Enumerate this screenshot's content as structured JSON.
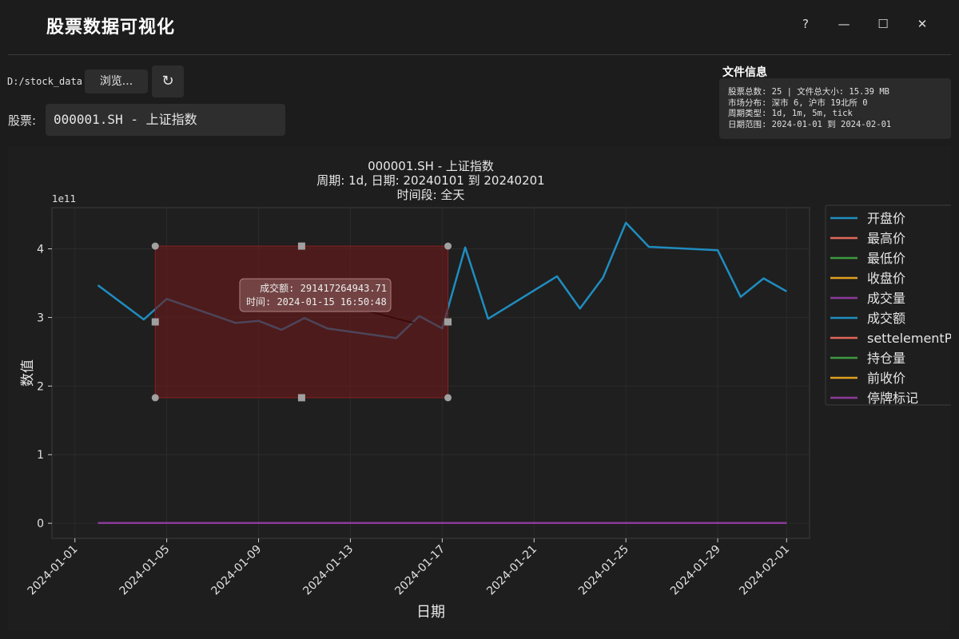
{
  "app": {
    "title": "股票数据可视化",
    "window_buttons": {
      "help": "?",
      "minimize": "—",
      "maximize": "☐",
      "close": "✕"
    }
  },
  "toolbar": {
    "path": "D:/stock_data",
    "browse_label": "浏览...",
    "refresh_label": "↻",
    "stock_label": "股票:",
    "stock_value": "000001.SH - 上证指数"
  },
  "file_info": {
    "title": "文件信息",
    "lines": [
      "股票总数: 25  |  文件总大小: 15.39 MB",
      "市场分布: 深市 6, 沪市 19北所 0",
      "周期类型: 1d, 1m, 5m, tick",
      "日期范围: 2024-01-01 到 2024-02-01"
    ]
  },
  "colors": {
    "background": "#1c1c1c",
    "panel": "#1e1e1e",
    "series_blue": "#1f8dc0",
    "series_red": "#e0675a",
    "series_green": "#3d9a3d",
    "series_orange": "#e0a020",
    "series_purple": "#8b3a9a",
    "selection_fill": "#6a1a1a"
  },
  "chart_data": {
    "type": "line",
    "title_lines": [
      "000001.SH - 上证指数",
      "周期: 1d, 日期: 20240101 到 20240201",
      "时间段: 全天"
    ],
    "xlabel": "日期",
    "ylabel": "数值",
    "y_multiplier": "1e11",
    "y_ticks": [
      "0",
      "1",
      "2",
      "3",
      "4"
    ],
    "x_ticks": [
      "2024-01-01",
      "2024-01-05",
      "2024-01-09",
      "2024-01-13",
      "2024-01-17",
      "2024-01-21",
      "2024-01-25",
      "2024-01-29",
      "2024-02-01"
    ],
    "ylim": [
      -0.22,
      4.6
    ],
    "grid": true,
    "legend_position": "outside-right",
    "legend": [
      "开盘价",
      "最高价",
      "最低价",
      "收盘价",
      "成交量",
      "成交额",
      "settelementPr",
      "持仓量",
      "前收价",
      "停牌标记"
    ],
    "series": [
      {
        "name": "成交额",
        "color": "#1f8dc0",
        "x": [
          "2024-01-02",
          "2024-01-04",
          "2024-01-05",
          "2024-01-08",
          "2024-01-09",
          "2024-01-10",
          "2024-01-11",
          "2024-01-12",
          "2024-01-15",
          "2024-01-16",
          "2024-01-17",
          "2024-01-18",
          "2024-01-19",
          "2024-01-22",
          "2024-01-23",
          "2024-01-24",
          "2024-01-25",
          "2024-01-26",
          "2024-01-29",
          "2024-01-30",
          "2024-01-31",
          "2024-02-01"
        ],
        "values": [
          3.47,
          2.97,
          3.27,
          2.92,
          2.95,
          2.82,
          2.99,
          2.84,
          2.7,
          3.02,
          2.84,
          4.02,
          2.98,
          3.6,
          3.13,
          3.58,
          4.38,
          4.03,
          3.98,
          3.3,
          3.57,
          3.38
        ]
      },
      {
        "name": "成交量",
        "color": "#8b3a9a",
        "x": [
          "2024-01-02",
          "2024-02-01"
        ],
        "values": [
          0.003,
          0.003
        ]
      }
    ],
    "selection": {
      "x_range": [
        "2024-01-04 12:00",
        "2024-01-17 06:00"
      ],
      "y_range": [
        1.83,
        4.04
      ]
    },
    "tooltip": {
      "line1": "成交额: 291417264943.71",
      "line2": "时间: 2024-01-15 16:50:48",
      "target_x": "2024-01-15 18:00",
      "target_y": 2.92
    }
  }
}
